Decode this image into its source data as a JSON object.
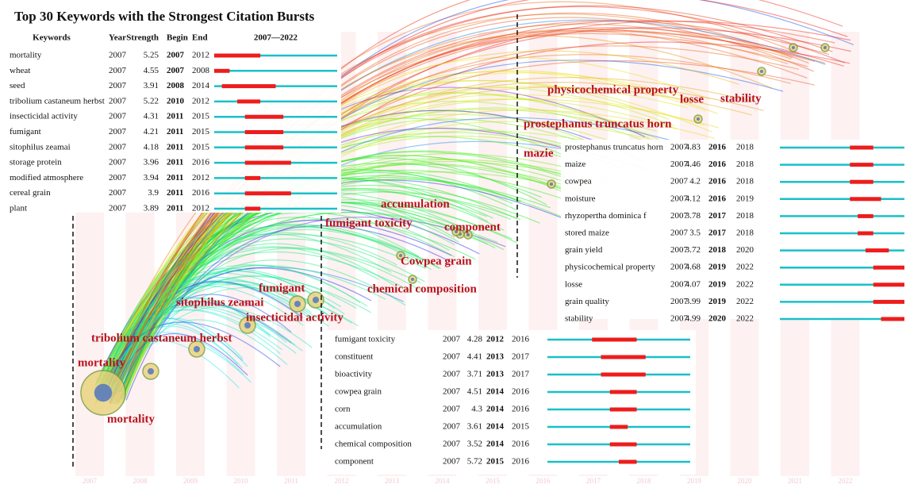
{
  "title": "Top 30 Keywords with the Strongest Citation Bursts",
  "header": {
    "keywords": "Keywords",
    "year": "Year",
    "strength": "Strength",
    "begin": "Begin",
    "end": "End",
    "range": "2007—2022"
  },
  "tables": [
    {
      "rows": [
        [
          "mortality",
          2007,
          5.25,
          2007,
          2012
        ],
        [
          "wheat",
          2007,
          4.55,
          2007,
          2008
        ],
        [
          "seed",
          2007,
          3.91,
          2008,
          2014
        ],
        [
          "tribolium castaneum herbst",
          2007,
          5.22,
          2010,
          2012
        ],
        [
          "insecticidal activity",
          2007,
          4.31,
          2011,
          2015
        ],
        [
          "fumigant",
          2007,
          4.21,
          2011,
          2015
        ],
        [
          "sitophilus zeamai",
          2007,
          4.18,
          2011,
          2015
        ],
        [
          "storage protein",
          2007,
          3.96,
          2011,
          2016
        ],
        [
          "modified atmosphere",
          2007,
          3.94,
          2011,
          2012
        ],
        [
          "cereal grain",
          2007,
          3.9,
          2011,
          2016
        ],
        [
          "plant",
          2007,
          3.89,
          2011,
          2012
        ]
      ]
    },
    {
      "rows": [
        [
          "prostephanus truncatus horn",
          2007,
          4.83,
          2016,
          2018
        ],
        [
          "maize",
          2007,
          4.46,
          2016,
          2018
        ],
        [
          "cowpea",
          2007,
          4.2,
          2016,
          2018
        ],
        [
          "moisture",
          2007,
          4.12,
          2016,
          2019
        ],
        [
          "rhyzopertha dominica f",
          2007,
          3.78,
          2017,
          2018
        ],
        [
          "stored maize",
          2007,
          3.5,
          2017,
          2018
        ],
        [
          "grain yield",
          2007,
          3.72,
          2018,
          2020
        ],
        [
          "physicochemical property",
          2007,
          4.68,
          2019,
          2022
        ],
        [
          "losse",
          2007,
          4.07,
          2019,
          2022
        ],
        [
          "grain quality",
          2007,
          3.99,
          2019,
          2022
        ],
        [
          "stability",
          2007,
          4.99,
          2020,
          2022
        ]
      ]
    },
    {
      "rows": [
        [
          "fumigant toxicity",
          2007,
          4.28,
          2012,
          2016
        ],
        [
          "constituent",
          2007,
          4.41,
          2013,
          2017
        ],
        [
          "bioactivity",
          2007,
          3.71,
          2013,
          2017
        ],
        [
          "cowpea grain",
          2007,
          4.51,
          2014,
          2016
        ],
        [
          "corn",
          2007,
          4.3,
          2014,
          2016
        ],
        [
          "accumulation",
          2007,
          3.61,
          2014,
          2015
        ],
        [
          "chemical composition",
          2007,
          3.52,
          2014,
          2016
        ],
        [
          "component",
          2007,
          5.72,
          2015,
          2016
        ]
      ]
    }
  ],
  "network_labels": [
    "mortality",
    "mortality",
    "tribolium castaneum herbst",
    "sitophilus zeamai",
    "fumigant",
    "insecticidal activity",
    "fumigant toxicity",
    "accumulation",
    "component",
    "Cowpea grain",
    "chemical composition",
    "mazie",
    "prostephanus truncatus horn",
    "physicochemical property",
    "losse",
    "stability"
  ],
  "years": [
    2007,
    2008,
    2009,
    2010,
    2011,
    2012,
    2013,
    2014,
    2015,
    2016,
    2017,
    2018,
    2019,
    2020,
    2021,
    2022
  ]
}
